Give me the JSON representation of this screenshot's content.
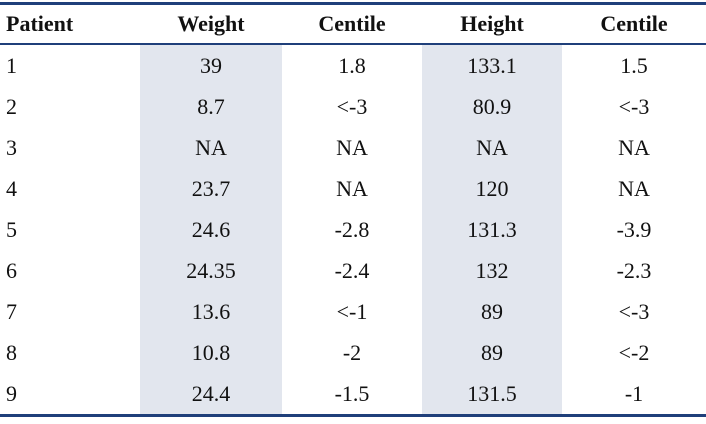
{
  "table": {
    "header": [
      "Patient",
      "Weight",
      "Centile",
      "Height",
      "Centile"
    ],
    "rows": [
      [
        "1",
        "39",
        "1.8",
        "133.1",
        "1.5"
      ],
      [
        "2",
        "8.7",
        "<-3",
        "80.9",
        "<-3"
      ],
      [
        "3",
        "NA",
        "NA",
        "NA",
        "NA"
      ],
      [
        "4",
        "23.7",
        "NA",
        "120",
        "NA"
      ],
      [
        "5",
        "24.6",
        "-2.8",
        "131.3",
        "-3.9"
      ],
      [
        "6",
        "24.35",
        "-2.4",
        "132",
        "-2.3"
      ],
      [
        "7",
        "13.6",
        "<-1",
        "89",
        "<-3"
      ],
      [
        "8",
        "10.8",
        "-2",
        "89",
        "<-2"
      ],
      [
        "9",
        "24.4",
        "-1.5",
        "131.5",
        "-1"
      ]
    ]
  }
}
